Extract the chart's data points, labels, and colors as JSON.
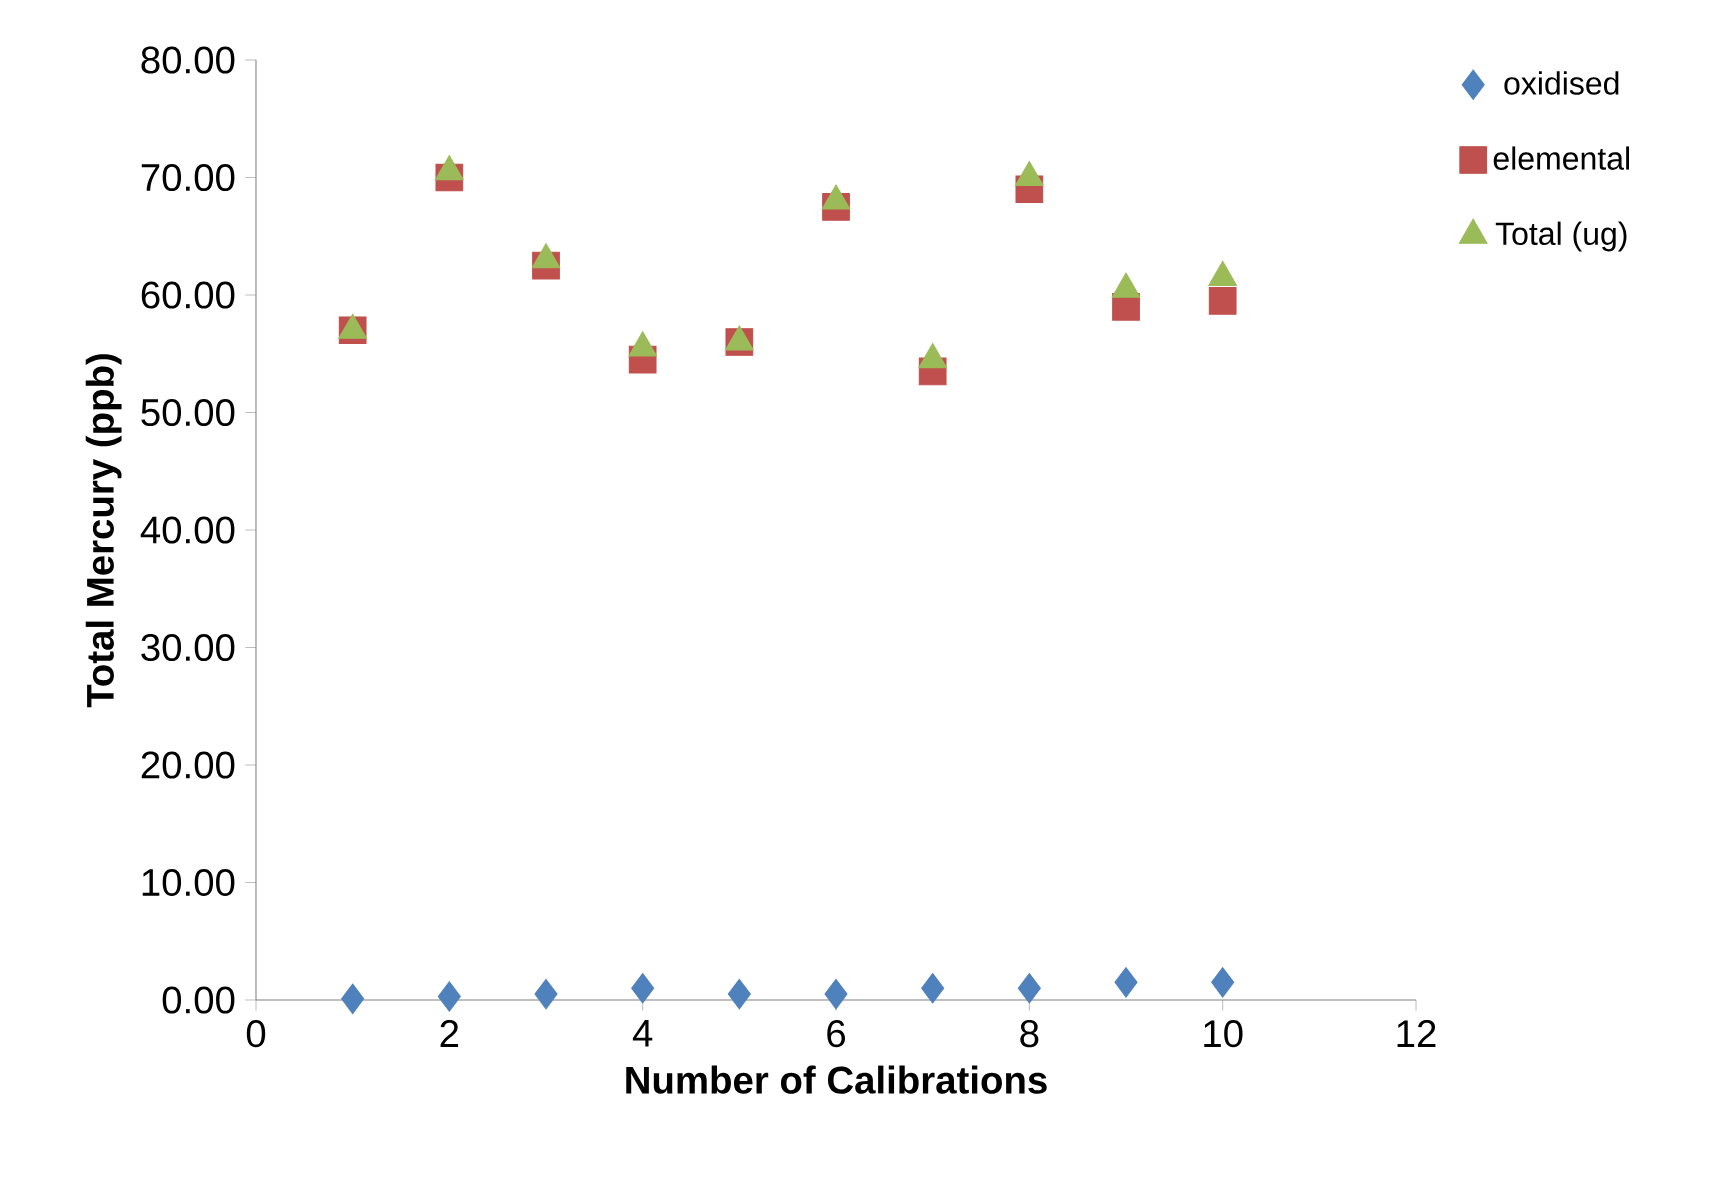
{
  "chart_data": {
    "type": "scatter",
    "xlabel": "Number of Calibrations",
    "ylabel": "Total Mercury (ppb)",
    "x": [
      1,
      2,
      3,
      4,
      5,
      6,
      7,
      8,
      9,
      10
    ],
    "series": [
      {
        "name": "oxidised",
        "color": "#4f81bd",
        "marker": "diamond",
        "values": [
          0.1,
          0.3,
          0.5,
          1.0,
          0.5,
          0.5,
          1.0,
          1.0,
          1.5,
          1.5
        ]
      },
      {
        "name": "elemental",
        "color": "#c0504d",
        "marker": "square",
        "values": [
          57,
          70,
          62.5,
          54.5,
          56,
          67.5,
          53.5,
          69,
          59,
          59.5
        ]
      },
      {
        "name": "Total (ug)",
        "color": "#9bbb59",
        "marker": "triangle",
        "values": [
          57,
          70.5,
          63,
          55.5,
          56,
          68,
          54.5,
          70,
          60.5,
          61.5
        ]
      }
    ],
    "xlim": [
      0,
      12
    ],
    "xticks": [
      0,
      2,
      4,
      6,
      8,
      10,
      12
    ],
    "ylim": [
      0,
      80
    ],
    "yticks": [
      {
        "value": 0,
        "label": "0.00"
      },
      {
        "value": 10,
        "label": "10.00"
      },
      {
        "value": 20,
        "label": "20.00"
      },
      {
        "value": 30,
        "label": "30.00"
      },
      {
        "value": 40,
        "label": "40.00"
      },
      {
        "value": 50,
        "label": "50.00"
      },
      {
        "value": 60,
        "label": "60.00"
      },
      {
        "value": 70,
        "label": "70.00"
      },
      {
        "value": 80,
        "label": "80.00"
      }
    ],
    "grid": false,
    "legend": "right"
  }
}
